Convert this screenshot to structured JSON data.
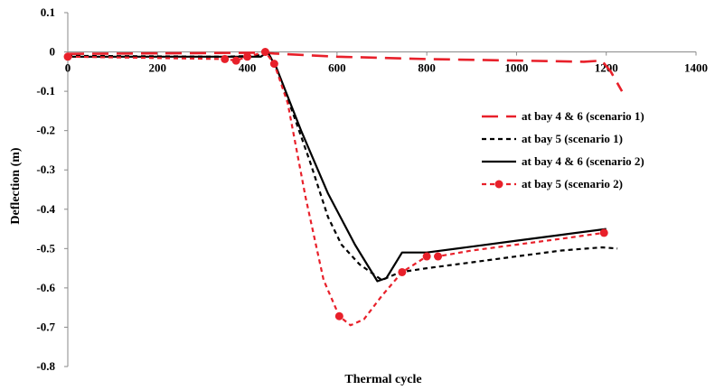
{
  "chart_data": {
    "type": "line",
    "xlabel": "Thermal cycle",
    "ylabel": "Deflection (m)",
    "xlim": [
      0,
      1400
    ],
    "ylim": [
      -0.8,
      0.1
    ],
    "x_ticks": [
      "0",
      "200",
      "400",
      "600",
      "800",
      "1000",
      "1200",
      "1400"
    ],
    "y_ticks": [
      "0.1",
      "0",
      "-0.1",
      "-0.2",
      "-0.3",
      "-0.4",
      "-0.5",
      "-0.6",
      "-0.7",
      "-0.8"
    ],
    "grid": false,
    "legend_position": "right",
    "series": [
      {
        "name": "at bay 4 & 6 (scenario 1)",
        "color": "#e8202a",
        "line_style": "long-dash",
        "markers": false,
        "points": [
          [
            0,
            -0.005
          ],
          [
            440,
            -0.002
          ],
          [
            460,
            -0.004
          ],
          [
            600,
            -0.012
          ],
          [
            800,
            -0.018
          ],
          [
            1000,
            -0.022
          ],
          [
            1150,
            -0.025
          ],
          [
            1190,
            -0.022
          ],
          [
            1210,
            -0.05
          ],
          [
            1235,
            -0.1
          ]
        ]
      },
      {
        "name": "at bay 5 (scenario 1)",
        "color": "#000000",
        "line_style": "short-dash",
        "markers": false,
        "points": [
          [
            0,
            -0.01
          ],
          [
            350,
            -0.012
          ],
          [
            420,
            -0.01
          ],
          [
            445,
            0.0
          ],
          [
            460,
            -0.03
          ],
          [
            500,
            -0.15
          ],
          [
            540,
            -0.28
          ],
          [
            580,
            -0.42
          ],
          [
            610,
            -0.49
          ],
          [
            650,
            -0.54
          ],
          [
            700,
            -0.58
          ],
          [
            740,
            -0.56
          ],
          [
            800,
            -0.55
          ],
          [
            900,
            -0.535
          ],
          [
            1000,
            -0.52
          ],
          [
            1100,
            -0.505
          ],
          [
            1190,
            -0.497
          ],
          [
            1225,
            -0.5
          ]
        ]
      },
      {
        "name": "at bay 4 & 6 (scenario 2)",
        "color": "#000000",
        "line_style": "solid",
        "markers": false,
        "points": [
          [
            0,
            -0.012
          ],
          [
            430,
            -0.012
          ],
          [
            445,
            0.0
          ],
          [
            465,
            -0.04
          ],
          [
            520,
            -0.2
          ],
          [
            580,
            -0.36
          ],
          [
            640,
            -0.49
          ],
          [
            690,
            -0.583
          ],
          [
            710,
            -0.575
          ],
          [
            745,
            -0.51
          ],
          [
            780,
            -0.51
          ],
          [
            800,
            -0.51
          ],
          [
            900,
            -0.495
          ],
          [
            1000,
            -0.48
          ],
          [
            1100,
            -0.465
          ],
          [
            1200,
            -0.45
          ]
        ]
      },
      {
        "name": "at bay 5 (scenario 2)",
        "color": "#e8202a",
        "line_style": "short-dash",
        "markers": true,
        "marker_x": [
          0,
          350,
          375,
          400,
          440,
          460,
          605,
          745,
          800,
          825,
          1195
        ],
        "points": [
          [
            0,
            -0.012
          ],
          [
            350,
            -0.018
          ],
          [
            375,
            -0.022
          ],
          [
            400,
            -0.012
          ],
          [
            440,
            0.0
          ],
          [
            460,
            -0.03
          ],
          [
            490,
            -0.13
          ],
          [
            530,
            -0.37
          ],
          [
            570,
            -0.58
          ],
          [
            605,
            -0.672
          ],
          [
            630,
            -0.695
          ],
          [
            660,
            -0.68
          ],
          [
            700,
            -0.62
          ],
          [
            745,
            -0.56
          ],
          [
            800,
            -0.52
          ],
          [
            825,
            -0.52
          ],
          [
            900,
            -0.505
          ],
          [
            1000,
            -0.49
          ],
          [
            1100,
            -0.475
          ],
          [
            1195,
            -0.46
          ]
        ]
      }
    ]
  }
}
